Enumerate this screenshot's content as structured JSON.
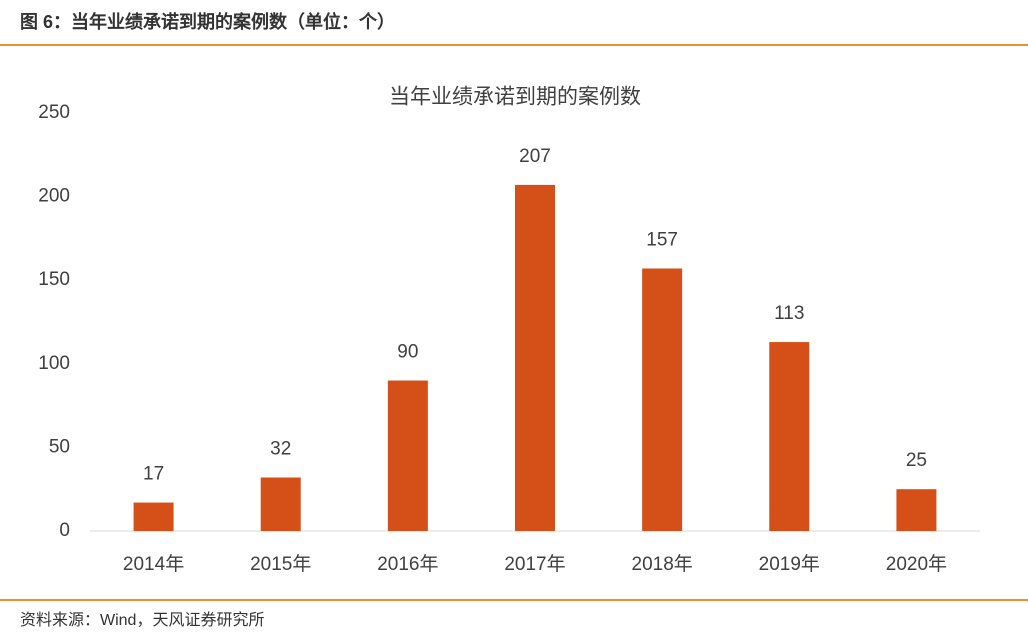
{
  "header": {
    "title": "图 6：当年业绩承诺到期的案例数（单位：个）"
  },
  "chart_data": {
    "type": "bar",
    "title": "当年业绩承诺到期的案例数",
    "categories": [
      "2014年",
      "2015年",
      "2016年",
      "2017年",
      "2018年",
      "2019年",
      "2020年"
    ],
    "values": [
      17,
      32,
      90,
      207,
      157,
      113,
      25
    ],
    "color": "#d54f18",
    "ylim": [
      0,
      250
    ],
    "yticks": [
      0,
      50,
      100,
      150,
      200,
      250
    ],
    "grid": false,
    "data_labels": true
  },
  "footer": {
    "source": "资料来源：Wind，天风证券研究所"
  }
}
